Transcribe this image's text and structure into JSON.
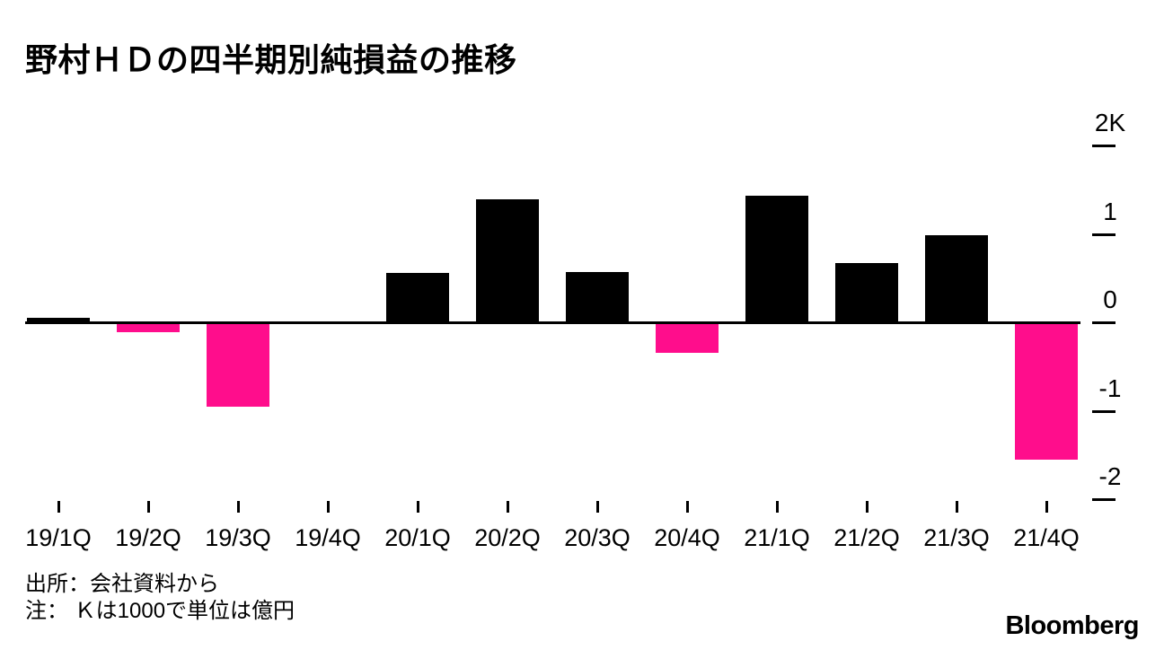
{
  "title": "野村ＨＤの四半期別純損益の推移",
  "footer": {
    "source": "出所：会社資料から",
    "note": "注： Ｋは1000で単位は億円"
  },
  "branding": {
    "logo": "Bloomberg"
  },
  "colors": {
    "positive_bar": "#000000",
    "negative_bar": "#ff0d8c",
    "axis": "#000000",
    "text": "#000000",
    "background": "#ffffff"
  },
  "chart_data": {
    "type": "bar",
    "title": "野村ＨＤの四半期別純損益の推移",
    "categories": [
      "19/1Q",
      "19/2Q",
      "19/3Q",
      "19/4Q",
      "20/1Q",
      "20/2Q",
      "20/3Q",
      "20/4Q",
      "21/1Q",
      "21/2Q",
      "21/3Q",
      "21/4Q"
    ],
    "values": [
      0.05,
      -0.11,
      -0.95,
      0.01,
      0.56,
      1.39,
      0.57,
      -0.35,
      1.43,
      0.67,
      0.98,
      -1.55
    ],
    "xlabel": "",
    "ylabel": "",
    "unit": "K",
    "y_axis_side": "right",
    "y_ticks": [
      {
        "label": "2K",
        "value": 2
      },
      {
        "label": "1",
        "value": 1
      },
      {
        "label": "0",
        "value": 0
      },
      {
        "label": "-1",
        "value": -1
      },
      {
        "label": "-2",
        "value": -2
      }
    ],
    "ylim": [
      -2.4,
      2.4
    ],
    "grid": false,
    "legend": false,
    "positive_color": "#000000",
    "negative_color": "#ff0d8c",
    "source": "出所：会社資料から",
    "note": "注： Ｋは1000で単位は億円"
  }
}
